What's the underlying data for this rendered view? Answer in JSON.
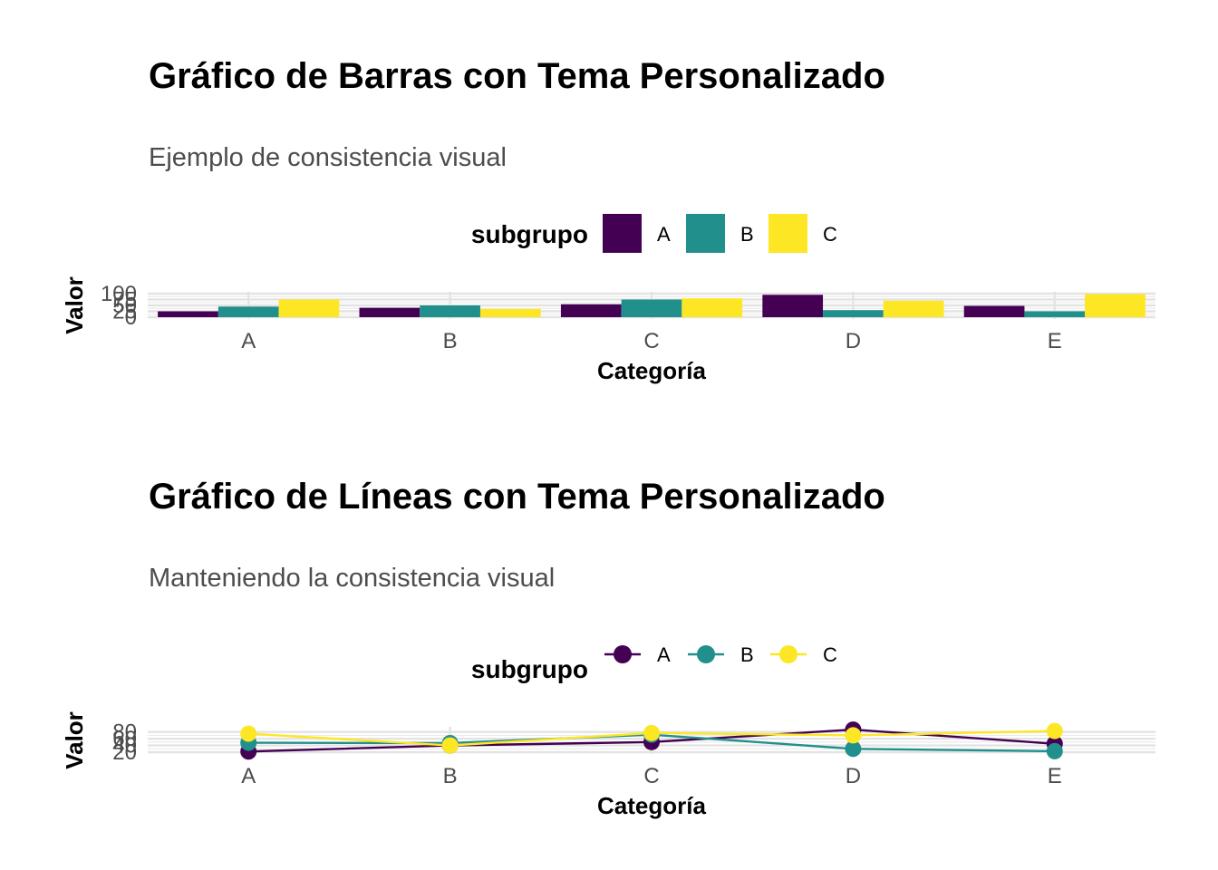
{
  "chart_data": [
    {
      "type": "bar",
      "title": "Gráfico de Barras con Tema Personalizado",
      "subtitle": "Ejemplo de consistencia visual",
      "xlabel": "Categoría",
      "ylabel": "Valor",
      "legend_title": "subgrupo",
      "legend_position": "top",
      "categories": [
        "A",
        "B",
        "C",
        "D",
        "E"
      ],
      "yticks": [
        0,
        25,
        50,
        75,
        100
      ],
      "ytick_labels": [
        "0",
        "25",
        "50",
        "75",
        "100"
      ],
      "ylim": [
        0,
        100
      ],
      "grid": true,
      "series": [
        {
          "name": "A",
          "color": "#440154",
          "values": [
            25,
            40,
            55,
            95,
            48
          ]
        },
        {
          "name": "B",
          "color": "#21908C",
          "values": [
            45,
            50,
            75,
            30,
            25
          ]
        },
        {
          "name": "C",
          "color": "#FDE725",
          "values": [
            75,
            35,
            80,
            70,
            98
          ]
        }
      ]
    },
    {
      "type": "line",
      "title": "Gráfico de Líneas con Tema Personalizado",
      "subtitle": "Manteniendo la consistencia visual",
      "xlabel": "Categoría",
      "ylabel": "Valor",
      "legend_title": "subgrupo",
      "legend_position": "top",
      "categories": [
        "A",
        "B",
        "C",
        "D",
        "E"
      ],
      "yticks": [
        20,
        40,
        60,
        80
      ],
      "ytick_labels": [
        "20",
        "40",
        "60",
        "80"
      ],
      "ylim": [
        20,
        90
      ],
      "grid": true,
      "series": [
        {
          "name": "A",
          "color": "#440154",
          "values": [
            22,
            40,
            50,
            87,
            45
          ]
        },
        {
          "name": "B",
          "color": "#21908C",
          "values": [
            48,
            47,
            72,
            30,
            23
          ]
        },
        {
          "name": "C",
          "color": "#FDE725",
          "values": [
            75,
            40,
            77,
            70,
            83
          ]
        }
      ]
    }
  ]
}
